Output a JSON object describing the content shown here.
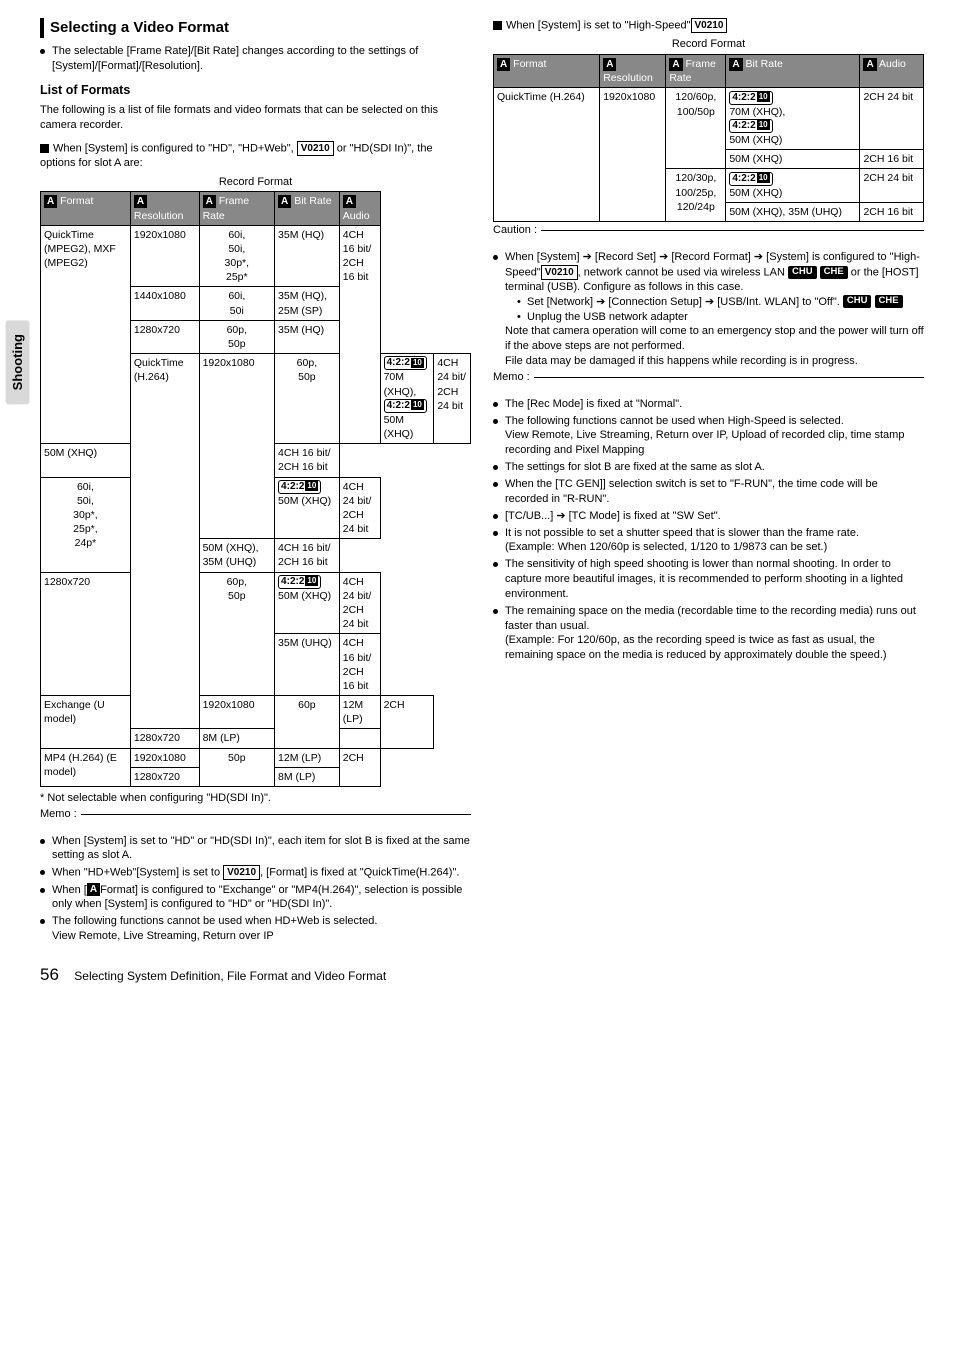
{
  "title": "Selecting a Video Format",
  "intro": "The selectable [Frame Rate]/[Bit Rate] changes according to the settings of [System]/[Format]/[Resolution].",
  "listHead": "List of Formats",
  "listIntro": "The following is a list of file formats and video formats that can be selected on this camera recorder.",
  "sys1_pre": "When [System] is configured to \"HD\", \"HD+Web\", ",
  "sys1_post": " or \"HD(SDI In)\", the options for slot A are:",
  "bl422": "4:2:2",
  "bitTen": "10 bit",
  "v0210": "V0210",
  "chu": "CHU",
  "che": "CHE",
  "t1": {
    "caption": "Record Format",
    "h": [
      "Format",
      "Resolution",
      "Frame Rate",
      "Bit Rate",
      "Audio"
    ],
    "r": [
      {
        "f": "QuickTime (MPEG2), MXF (MPEG2)",
        "res": "1920x1080",
        "fr": "60i, 50i, 30p*, 25p*",
        "br": "35M (HQ)",
        "au": "4CH 16 bit/ 2CH 16 bit",
        "rs": {
          "f": 4,
          "au": 4
        }
      },
      {
        "res": "1440x1080",
        "fr": "60i, 50i",
        "br": "35M (HQ), 25M (SP)"
      },
      {
        "res": "1280x720",
        "fr": "60p, 50p",
        "br": "35M (HQ)"
      },
      {
        "f": "QuickTime (H.264)",
        "res": "1920x1080",
        "fr": "60p, 50p",
        "br_l": [
          {
            "t": "422"
          },
          {
            "t": "70M (XHQ),"
          },
          {
            "t": "422"
          },
          {
            "t": "50M (XHQ)"
          }
        ],
        "au": "4CH 24 bit/ 2CH 24 bit",
        "rs": {
          "f": 7,
          "res": 3
        }
      },
      {
        "br": "50M (XHQ)",
        "au": "4CH 16 bit/ 2CH 16 bit"
      },
      {
        "fr": "60i, 50i, 30p*, 25p*, 24p*",
        "br_l": [
          {
            "t": "422"
          },
          {
            "t": "50M (XHQ)"
          }
        ],
        "au": "4CH 24 bit/ 2CH 24 bit",
        "rs": {
          "fr": 2
        }
      },
      {
        "br": "50M (XHQ), 35M (UHQ)",
        "au": "4CH 16 bit/ 2CH 16 bit"
      },
      {
        "res": "1280x720",
        "fr": "60p, 50p",
        "br_l": [
          {
            "t": "422"
          },
          {
            "t": "50M (XHQ)"
          }
        ],
        "au": "4CH 24 bit/ 2CH 24 bit",
        "rs": {
          "res": 2,
          "fr": 2
        }
      },
      {
        "br": "35M (UHQ)",
        "au": "4CH 16 bit/ 2CH 16 bit"
      },
      {
        "f": "Exchange (U model)",
        "res": "1920x1080",
        "fr": "60p",
        "br": "12M (LP)",
        "au": "2CH",
        "rs": {
          "f": 2,
          "fr": 2,
          "au": 2
        }
      },
      {
        "res": "1280x720",
        "br": "8M (LP)"
      },
      {
        "f": "MP4 (H.264) (E model)",
        "res": "1920x1080",
        "fr": "50p",
        "br": "12M (LP)",
        "au": "2CH",
        "rs": {
          "f": 2,
          "fr": 2,
          "au": 2
        }
      },
      {
        "res": "1280x720",
        "br": "8M (LP)"
      }
    ]
  },
  "foot1": "* Not selectable when configuring \"HD(SDI In)\".",
  "memo1": [
    "When [System] is set to \"HD\" or \"HD(SDI In)\", each item for slot B is fixed at the same setting as slot A.",
    "When \"HD+Web\"[System] is set to __V0210__, [Format] is fixed at \"QuickTime(H.264)\".",
    "When [__A__Format] is configured to \"Exchange\" or \"MP4(H.264)\", selection is possible only when [System] is configured to \"HD\" or \"HD(SDI In)\".",
    "The following functions cannot be used when HD+Web is selected.\nView Remote, Live Streaming, Return over IP"
  ],
  "sys2_pre": "When [System] is set to \"High-Speed\"",
  "t2": {
    "caption": "Record Format",
    "h": [
      "Format",
      "Resolution",
      "Frame Rate",
      "Bit Rate",
      "Audio"
    ],
    "r": [
      {
        "f": "QuickTime (H.264)",
        "res": "1920x1080",
        "fr": "120/60p, 100/50p",
        "br_l": [
          {
            "t": "422"
          },
          {
            "t": "70M (XHQ),"
          },
          {
            "t": "422"
          },
          {
            "t": "50M (XHQ)"
          }
        ],
        "au": "2CH 24 bit",
        "rs": {
          "f": 4,
          "res": 4,
          "fr": 2
        }
      },
      {
        "br": "50M (XHQ)",
        "au": "2CH 16 bit"
      },
      {
        "fr": "120/30p, 100/25p, 120/24p",
        "br_l": [
          {
            "t": "422"
          },
          {
            "t": "50M (XHQ)"
          }
        ],
        "au": "2CH 24 bit",
        "rs": {
          "fr": 2
        }
      },
      {
        "br": "50M (XHQ), 35M (UHQ)",
        "au": "2CH 16 bit"
      }
    ]
  },
  "caution": [
    {
      "type": "rec",
      "text": "When [System] ➔ [Record Set] ➔ [Record Format] ➔ [System] is configured to \"High-Speed\"__V0210__, network cannot be used via wireless LAN __CHU__ __CHE__ or the [HOST] terminal (USB). Configure as follows in this case.",
      "sub": [
        "Set [Network] ➔ [Connection Setup] ➔ [USB/Int. WLAN] to \"Off\". __CHU__ __CHE__",
        "Unplug the USB network adapter"
      ],
      "post": "Note that camera operation will come to an emergency stop and the power will turn off if the above steps are not performed.\nFile data may be damaged if this happens while recording is in progress."
    }
  ],
  "memo2": [
    "The [Rec Mode] is fixed at \"Normal\".",
    "The following functions cannot be used when High-Speed is selected.\nView Remote, Live Streaming, Return over IP, Upload of recorded clip, time stamp recording and Pixel Mapping",
    "The settings for slot B are fixed at the same as slot A.",
    "When the [TC GEN]] selection switch is set to \"F-RUN\", the time code will be recorded in \"R-RUN\".",
    "[TC/UB...] ➔ [TC Mode] is fixed at \"SW Set\".",
    "It is not possible to set a shutter speed that is slower than the frame rate.\n(Example: When 120/60p is selected, 1/120 to 1/9873 can be set.)",
    "The sensitivity of high speed shooting is lower than normal shooting. In order to capture more beautiful images, it is recommended to perform shooting in a lighted environment.",
    "The remaining space on the media (recordable time to the recording media) runs out faster than usual.\n(Example: For 120/60p, as the recording speed is twice as fast as usual, the remaining space on the media is reduced by approximately double the speed.)"
  ],
  "sideTab": "Shooting",
  "pageNum": "56",
  "pageTitle": "Selecting System Definition, File Format and Video Format",
  "memoLabel": "Memo :",
  "cautionLabel": "Caution :"
}
